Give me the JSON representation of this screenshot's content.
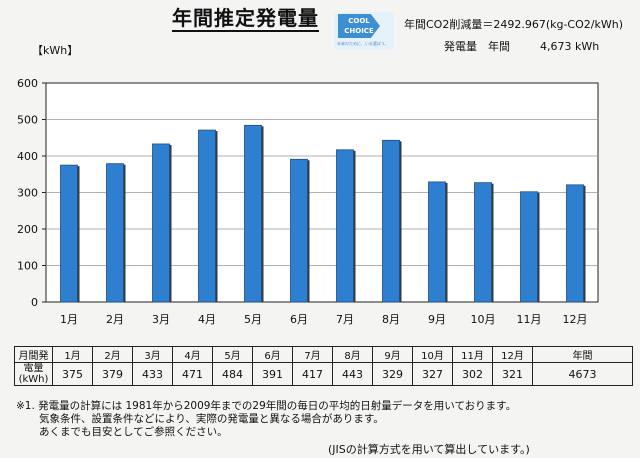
{
  "header": {
    "title": "年間推定発電量",
    "badge_line1": "COOL",
    "badge_line2": "CHOICE",
    "badge_tagline": "未来のために、いま選ぼう。",
    "co2_text": "年間CO2削減量＝2492.967(kg-CO2/kWh)",
    "annual_label": "発電量　年間",
    "annual_value": "4,673 kWh"
  },
  "chart_data": {
    "type": "bar",
    "ylabel": "kWh",
    "ylim": [
      0,
      600
    ],
    "yticks": [
      0,
      100,
      200,
      300,
      400,
      500,
      600
    ],
    "categories": [
      "1月",
      "2月",
      "3月",
      "4月",
      "5月",
      "6月",
      "7月",
      "8月",
      "9月",
      "10月",
      "11月",
      "12月"
    ],
    "values": [
      375,
      379,
      433,
      471,
      484,
      391,
      417,
      443,
      329,
      327,
      302,
      321
    ],
    "bar_color": "#2f7fd0",
    "grid": true
  },
  "table": {
    "row_label_1": "月間発",
    "row_label_2": "電量",
    "row_label_3": "(kWh)",
    "months": [
      "1月",
      "2月",
      "3月",
      "4月",
      "5月",
      "6月",
      "7月",
      "8月",
      "9月",
      "10月",
      "11月",
      "12月"
    ],
    "values": [
      "375",
      "379",
      "433",
      "471",
      "484",
      "391",
      "417",
      "443",
      "329",
      "327",
      "302",
      "321"
    ],
    "total_label": "年間",
    "total_value": "4673"
  },
  "notes": {
    "line1": "※1. 発電量の計算には 1981年から2009年までの29年間の毎日の平均的日射量データを用いております。",
    "line2": "気象条件、設置条件などにより、実際の発電量と異なる場合があります。",
    "line3": "あくまでも目安としてご参照ください。",
    "footer": "(JISの計算方式を用いて算出しています。)"
  }
}
